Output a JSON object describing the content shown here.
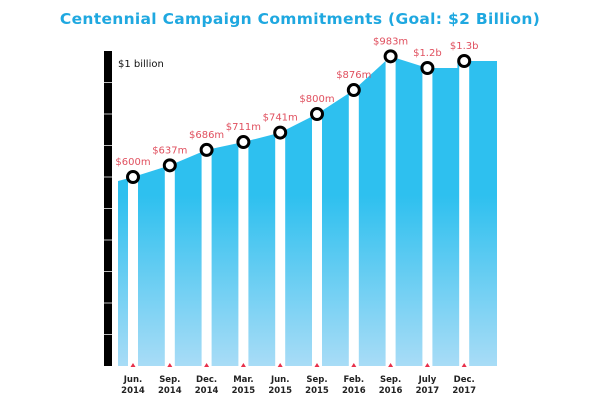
{
  "chart_data": {
    "type": "area",
    "title": "Centennial Campaign Commitments (Goal: $2 Billion)",
    "xlabel": "",
    "ylabel": "",
    "y_tick_label": "$1 billion",
    "ylim": [
      0,
      1000
    ],
    "y_step": 100,
    "unit": "millions USD",
    "categories": [
      {
        "month": "Jun.",
        "year": "2014"
      },
      {
        "month": "Sep.",
        "year": "2014"
      },
      {
        "month": "Dec.",
        "year": "2014"
      },
      {
        "month": "Mar.",
        "year": "2015"
      },
      {
        "month": "Jun.",
        "year": "2015"
      },
      {
        "month": "Sep.",
        "year": "2015"
      },
      {
        "month": "Feb.",
        "year": "2016"
      },
      {
        "month": "Sep.",
        "year": "2016"
      },
      {
        "month": "July",
        "year": "2017"
      },
      {
        "month": "Dec.",
        "year": "2017"
      }
    ],
    "values": [
      600,
      637,
      686,
      711,
      741,
      800,
      876,
      983,
      1200,
      1300
    ],
    "value_labels": [
      "$600m",
      "$637m",
      "$686m",
      "$711m",
      "$741m",
      "$800m",
      "$876m",
      "$983m",
      "$1.2b",
      "$1.3b"
    ],
    "colors": {
      "area_top": "#2ec0ef",
      "area_bottom": "#a8dcf6",
      "label": "#e0505f",
      "title": "#1fa8e0",
      "axis": "#000000",
      "tick_marker": "#e8304a"
    }
  }
}
